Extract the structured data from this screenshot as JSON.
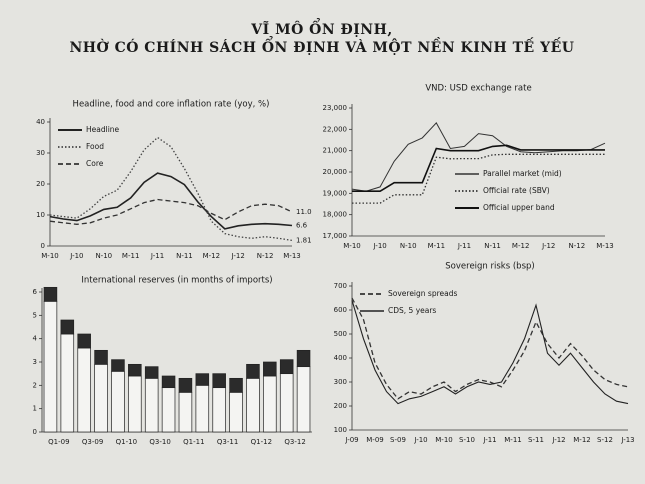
{
  "page_title": [
    "VĨ MÔ ỔN ĐỊNH,",
    "NHỜ CÓ CHÍNH SÁCH ỔN ĐỊNH VÀ MỘT NỀN KINH TẾ YẾU"
  ],
  "chart_data": [
    {
      "type": "line",
      "title": "Headline, food and core inflation rate (yoy, %)",
      "categories": [
        "M-10",
        null,
        "J-10",
        null,
        "N-10",
        null,
        "M-11",
        null,
        "J-11",
        null,
        "N-11",
        null,
        "M-12",
        null,
        "J-12",
        null,
        "N-12",
        null,
        "M-13"
      ],
      "ylim": [
        0,
        40
      ],
      "yticks": [
        0,
        10,
        20,
        30,
        40
      ],
      "legend": "upper left",
      "series": [
        {
          "name": "Headline",
          "color": "#222222",
          "dash": "solid",
          "width": 1.6,
          "end_label": "6.6",
          "values": [
            9.5,
            8.7,
            8.2,
            9.7,
            11.8,
            12.5,
            15.5,
            20.5,
            23.5,
            22.4,
            19.8,
            14.2,
            9.5,
            5.5,
            6.5,
            7.0,
            7.2,
            7.0,
            6.6
          ]
        },
        {
          "name": "Food",
          "color": "#444444",
          "dash": "dotted",
          "width": 1.3,
          "end_label": "1.81",
          "values": [
            10,
            9.5,
            9.0,
            12,
            16,
            18,
            24,
            31,
            35,
            32,
            25,
            17,
            8,
            4,
            3,
            2.5,
            3,
            2.5,
            1.81
          ]
        },
        {
          "name": "Core",
          "color": "#333333",
          "dash": "dashed",
          "width": 1.3,
          "end_label": "11.0",
          "values": [
            8,
            7.5,
            7,
            7.5,
            9,
            10,
            12,
            14,
            15,
            14.5,
            14,
            13,
            10.5,
            8.5,
            11,
            13,
            13.5,
            13,
            11
          ]
        }
      ]
    },
    {
      "type": "line",
      "title": "VND: USD exchange rate",
      "categories": [
        "M-10",
        null,
        "J-10",
        null,
        "N-10",
        null,
        "M-11",
        null,
        "J-11",
        null,
        "N-11",
        null,
        "M-12",
        null,
        "J-12",
        null,
        "N-12",
        null,
        "M-13"
      ],
      "ylim": [
        17000,
        23000
      ],
      "yticks": [
        {
          "value": 17000,
          "label": "17,000"
        },
        {
          "value": 18000,
          "label": "18,000"
        },
        {
          "value": 19000,
          "label": "19,000"
        },
        {
          "value": 20000,
          "label": "20,000"
        },
        {
          "value": 21000,
          "label": "21,000"
        },
        {
          "value": 22000,
          "label": "22,000"
        },
        {
          "value": 23000,
          "label": "23,000"
        }
      ],
      "legend": "lower right",
      "series": [
        {
          "name": "Parallel market (mid)",
          "color": "#333333",
          "dash": "solid",
          "width": 1,
          "values": [
            19200,
            19100,
            19300,
            20500,
            21300,
            21600,
            22300,
            21100,
            21200,
            21800,
            21700,
            21200,
            20950,
            20900,
            20950,
            21000,
            21000,
            21050,
            21350
          ]
        },
        {
          "name": "Official rate (SBV)",
          "color": "#333333",
          "dash": "dotted",
          "width": 1.3,
          "values": [
            18544,
            18544,
            18544,
            18932,
            18932,
            18932,
            20693,
            20618,
            20628,
            20628,
            20803,
            20828,
            20828,
            20828,
            20828,
            20828,
            20828,
            20828,
            20828
          ]
        },
        {
          "name": "Official upper band",
          "color": "#111111",
          "dash": "solid",
          "width": 1.6,
          "values": [
            19100,
            19100,
            19100,
            19500,
            19500,
            19500,
            21100,
            21000,
            21000,
            21000,
            21200,
            21250,
            21036,
            21036,
            21036,
            21036,
            21036,
            21036,
            21036
          ]
        }
      ]
    },
    {
      "type": "bar",
      "title": "International reserves (in months of imports)",
      "categories": [
        "Q1-09",
        null,
        "Q3-09",
        null,
        "Q1-10",
        null,
        "Q3-10",
        null,
        "Q1-11",
        null,
        "Q3-11",
        null,
        "Q1-12",
        null,
        "Q3-12",
        null
      ],
      "ylim": [
        0,
        6
      ],
      "yticks": [
        0,
        1,
        2,
        3,
        4,
        5,
        6
      ],
      "series": [
        {
          "color": "#f4f4f2",
          "values": [
            5.6,
            4.2,
            3.6,
            2.9,
            2.6,
            2.4,
            2.3,
            1.9,
            1.7,
            2.0,
            1.9,
            1.7,
            2.3,
            2.4,
            2.5,
            2.8
          ]
        },
        {
          "color": "#2b2b2b",
          "values": [
            0.6,
            0.6,
            0.6,
            0.6,
            0.5,
            0.5,
            0.5,
            0.5,
            0.6,
            0.5,
            0.6,
            0.6,
            0.6,
            0.6,
            0.6,
            0.7
          ]
        }
      ]
    },
    {
      "type": "line",
      "title": "Sovereign risks (bsp)",
      "categories": [
        "J-09",
        null,
        "M-09",
        null,
        "S-09",
        null,
        "J-10",
        null,
        "M-10",
        null,
        "S-10",
        null,
        "J-11",
        null,
        "M-11",
        null,
        "S-11",
        null,
        "J-12",
        null,
        "M-12",
        null,
        "S-12",
        null,
        "J-13"
      ],
      "ylim": [
        100,
        700
      ],
      "yticks": [
        100,
        200,
        300,
        400,
        500,
        600,
        700
      ],
      "legend": "upper left",
      "series": [
        {
          "name": "Sovereign spreads",
          "color": "#333333",
          "dash": "dashed",
          "width": 1.3,
          "values": [
            650,
            560,
            380,
            290,
            230,
            260,
            250,
            280,
            300,
            260,
            290,
            310,
            300,
            280,
            350,
            430,
            550,
            460,
            400,
            460,
            410,
            350,
            310,
            290,
            280
          ]
        },
        {
          "name": "CDS, 5 years",
          "color": "#222222",
          "dash": "solid",
          "width": 1.1,
          "values": [
            640,
            480,
            350,
            260,
            210,
            230,
            240,
            260,
            280,
            250,
            280,
            300,
            290,
            300,
            380,
            480,
            620,
            420,
            370,
            420,
            360,
            300,
            250,
            220,
            210
          ]
        }
      ]
    }
  ]
}
